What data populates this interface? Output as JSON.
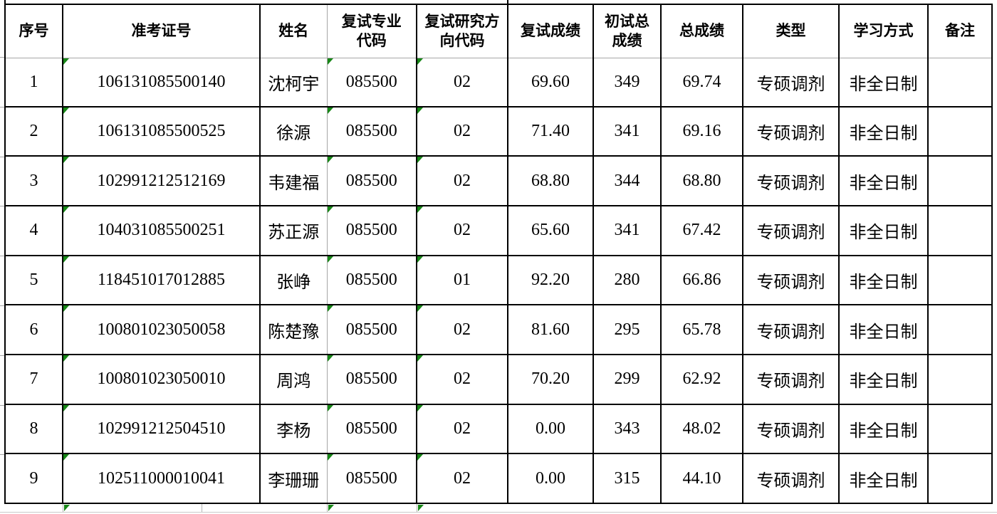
{
  "table": {
    "columns": [
      {
        "key": "seq",
        "label": "序号"
      },
      {
        "key": "ticket",
        "label": "准考证号"
      },
      {
        "key": "name",
        "label": "姓名"
      },
      {
        "key": "major_code",
        "label": "复试专业\n代码"
      },
      {
        "key": "direction_code",
        "label": "复试研究方\n向代码"
      },
      {
        "key": "retest_score",
        "label": "复试成绩"
      },
      {
        "key": "initial_total",
        "label": "初试总\n成绩"
      },
      {
        "key": "total_score",
        "label": "总成绩"
      },
      {
        "key": "type",
        "label": "类型"
      },
      {
        "key": "study_mode",
        "label": "学习方式"
      },
      {
        "key": "remark",
        "label": "备注"
      }
    ],
    "error_marker_columns": [
      1,
      3,
      4
    ],
    "rows": [
      [
        "1",
        "106131085500140",
        "沈柯宇",
        "085500",
        "02",
        "69.60",
        "349",
        "69.74",
        "专硕调剂",
        "非全日制",
        ""
      ],
      [
        "2",
        "106131085500525",
        "徐源",
        "085500",
        "02",
        "71.40",
        "341",
        "69.16",
        "专硕调剂",
        "非全日制",
        ""
      ],
      [
        "3",
        "102991212512169",
        "韦建福",
        "085500",
        "02",
        "68.80",
        "344",
        "68.80",
        "专硕调剂",
        "非全日制",
        ""
      ],
      [
        "4",
        "104031085500251",
        "苏正源",
        "085500",
        "02",
        "65.60",
        "341",
        "67.42",
        "专硕调剂",
        "非全日制",
        ""
      ],
      [
        "5",
        "118451017012885",
        "张峥",
        "085500",
        "01",
        "92.20",
        "280",
        "66.86",
        "专硕调剂",
        "非全日制",
        ""
      ],
      [
        "6",
        "100801023050058",
        "陈楚豫",
        "085500",
        "02",
        "81.60",
        "295",
        "65.78",
        "专硕调剂",
        "非全日制",
        ""
      ],
      [
        "7",
        "100801023050010",
        "周鸿",
        "085500",
        "02",
        "70.20",
        "299",
        "62.92",
        "专硕调剂",
        "非全日制",
        ""
      ],
      [
        "8",
        "102991212504510",
        "李杨",
        "085500",
        "02",
        "0.00",
        "343",
        "48.02",
        "专硕调剂",
        "非全日制",
        ""
      ],
      [
        "9",
        "102511000010041",
        "李珊珊",
        "085500",
        "02",
        "0.00",
        "315",
        "44.10",
        "专硕调剂",
        "非全日制",
        ""
      ]
    ]
  },
  "colors": {
    "table_border": "#000000",
    "sheet_gridline": "#a6a6a6",
    "error_marker_green": "#178717",
    "background": "#ffffff"
  }
}
